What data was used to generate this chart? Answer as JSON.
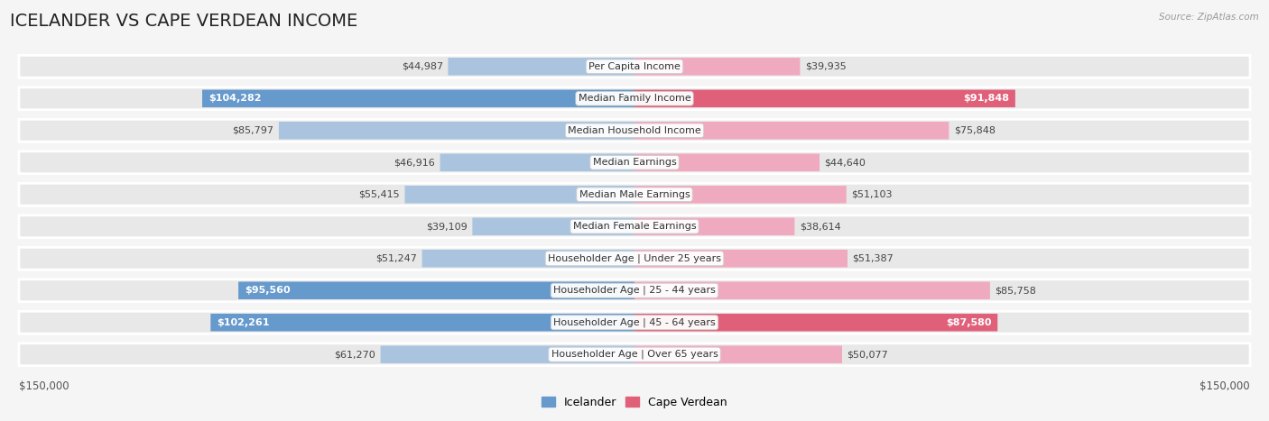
{
  "title": "ICELANDER VS CAPE VERDEAN INCOME",
  "source": "Source: ZipAtlas.com",
  "categories": [
    "Per Capita Income",
    "Median Family Income",
    "Median Household Income",
    "Median Earnings",
    "Median Male Earnings",
    "Median Female Earnings",
    "Householder Age | Under 25 years",
    "Householder Age | 25 - 44 years",
    "Householder Age | 45 - 64 years",
    "Householder Age | Over 65 years"
  ],
  "icelander_values": [
    44987,
    104282,
    85797,
    46916,
    55415,
    39109,
    51247,
    95560,
    102261,
    61270
  ],
  "capeverdean_values": [
    39935,
    91848,
    75848,
    44640,
    51103,
    38614,
    51387,
    85758,
    87580,
    50077
  ],
  "icelander_color_light": "#aac4e0",
  "icelander_color_bright": "#6699cc",
  "capeverdean_color_light": "#f0aabf",
  "capeverdean_color_bright": "#e0607a",
  "bright_threshold": 0.58,
  "max_value": 150000,
  "background_color": "#f5f5f5",
  "row_bg_color": "#e8e8e8",
  "title_fontsize": 14,
  "label_fontsize": 8,
  "value_fontsize": 8,
  "legend_fontsize": 9
}
